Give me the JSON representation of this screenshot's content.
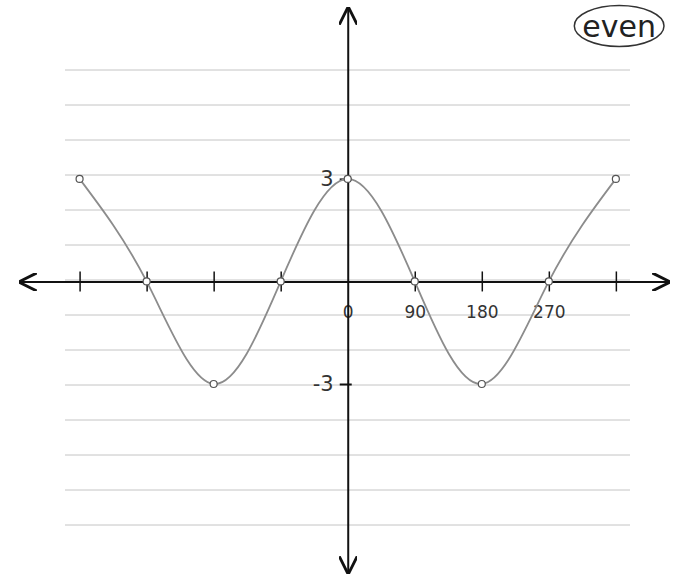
{
  "chart_data": {
    "type": "line",
    "annotations": [
      "even"
    ],
    "x": [
      -360,
      -270,
      -180,
      -90,
      0,
      90,
      180,
      270,
      360
    ],
    "values": [
      3,
      0,
      -3,
      0,
      3,
      0,
      -3,
      0,
      3
    ],
    "color": "#8c8c8c",
    "marker": "circle",
    "xlim": [
      -440,
      430
    ],
    "ylim": [
      -8.5,
      8
    ],
    "xticks": [
      {
        "value": -360,
        "label": null
      },
      {
        "value": -270,
        "label": null
      },
      {
        "value": -180,
        "label": null
      },
      {
        "value": -90,
        "label": null
      },
      {
        "value": 0,
        "label": "0"
      },
      {
        "value": 90,
        "label": "90"
      },
      {
        "value": 180,
        "label": "180"
      },
      {
        "value": 270,
        "label": "270"
      },
      {
        "value": 360,
        "label": null
      }
    ],
    "yticks": [
      -3,
      3
    ]
  }
}
